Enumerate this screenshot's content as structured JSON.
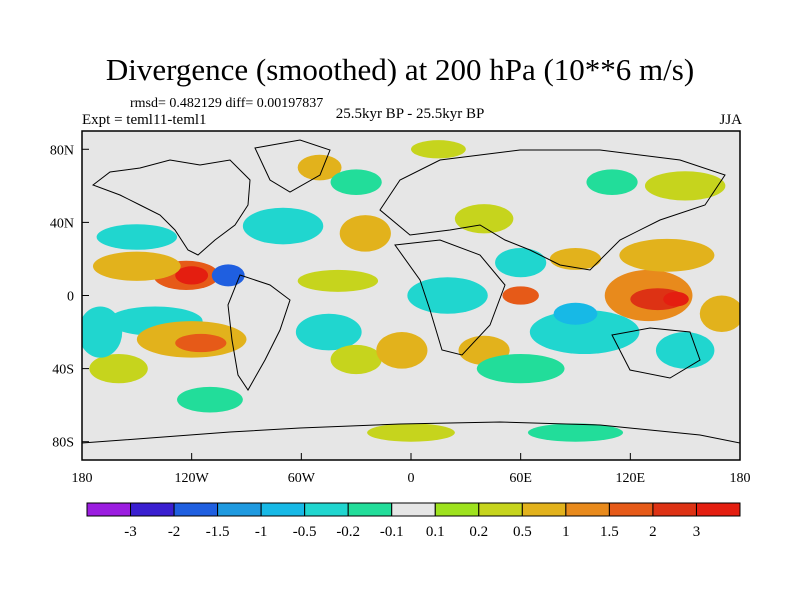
{
  "header": {
    "title": "Divergence (smoothed) at 200 hPa (10**6 m/s)",
    "stats": "rmsd= 0.482129 diff= 0.00197837",
    "experiment": "Expt = teml11-teml1",
    "period": "25.5kyr BP - 25.5kyr BP",
    "season": "JJA"
  },
  "map": {
    "projection": "cylindrical-equidistant",
    "lon_range": [
      -180,
      180
    ],
    "lat_range": [
      -90,
      90
    ],
    "background_color": "#e6e6e6",
    "x_ticks": [
      {
        "value": -180,
        "label": "180"
      },
      {
        "value": -120,
        "label": "120W"
      },
      {
        "value": -60,
        "label": "60W"
      },
      {
        "value": 0,
        "label": "0"
      },
      {
        "value": 60,
        "label": "60E"
      },
      {
        "value": 120,
        "label": "120E"
      },
      {
        "value": 180,
        "label": "180"
      }
    ],
    "y_ticks": [
      {
        "value": 80,
        "label": "80N"
      },
      {
        "value": 40,
        "label": "40N"
      },
      {
        "value": 0,
        "label": "0"
      },
      {
        "value": -40,
        "label": "40S"
      },
      {
        "value": -80,
        "label": "80S"
      }
    ],
    "features": [
      {
        "lon": -123,
        "lat": 11,
        "rlon": 18,
        "rlat": 8,
        "value": 1.5
      },
      {
        "lon": -120,
        "lat": 11,
        "rlon": 9,
        "rlat": 5,
        "value": 3
      },
      {
        "lon": -100,
        "lat": 11,
        "rlon": 9,
        "rlat": 6,
        "value": -2
      },
      {
        "lon": -150,
        "lat": 16,
        "rlon": 24,
        "rlat": 8,
        "value": 0.5
      },
      {
        "lon": -150,
        "lat": 32,
        "rlon": 22,
        "rlat": 7,
        "value": -0.5
      },
      {
        "lon": -140,
        "lat": -14,
        "rlon": 26,
        "rlat": 8,
        "value": -0.5
      },
      {
        "lon": -120,
        "lat": -24,
        "rlon": 30,
        "rlat": 10,
        "value": 0.5
      },
      {
        "lon": -115,
        "lat": -26,
        "rlon": 14,
        "rlat": 5,
        "value": 1.5
      },
      {
        "lon": -160,
        "lat": -40,
        "rlon": 16,
        "rlat": 8,
        "value": 0.2
      },
      {
        "lon": -110,
        "lat": -57,
        "rlon": 18,
        "rlat": 7,
        "value": -0.2
      },
      {
        "lon": -50,
        "lat": 70,
        "rlon": 12,
        "rlat": 7,
        "value": 0.5
      },
      {
        "lon": 15,
        "lat": 80,
        "rlon": 15,
        "rlat": 5,
        "value": 0.2
      },
      {
        "lon": -70,
        "lat": 38,
        "rlon": 22,
        "rlat": 10,
        "value": -0.5
      },
      {
        "lon": -25,
        "lat": 34,
        "rlon": 14,
        "rlat": 10,
        "value": 0.5
      },
      {
        "lon": -40,
        "lat": 8,
        "rlon": 22,
        "rlat": 6,
        "value": 0.2
      },
      {
        "lon": -45,
        "lat": -20,
        "rlon": 18,
        "rlat": 10,
        "value": -0.5
      },
      {
        "lon": -30,
        "lat": -35,
        "rlon": 14,
        "rlat": 8,
        "value": 0.2
      },
      {
        "lon": 20,
        "lat": 0,
        "rlon": 22,
        "rlat": 10,
        "value": -0.5
      },
      {
        "lon": -5,
        "lat": -30,
        "rlon": 14,
        "rlat": 10,
        "value": 0.5
      },
      {
        "lon": 40,
        "lat": -30,
        "rlon": 14,
        "rlat": 8,
        "value": 0.5
      },
      {
        "lon": 60,
        "lat": 0,
        "rlon": 10,
        "rlat": 5,
        "value": 1.5
      },
      {
        "lon": 40,
        "lat": 42,
        "rlon": 16,
        "rlat": 8,
        "value": 0.2
      },
      {
        "lon": 60,
        "lat": 18,
        "rlon": 14,
        "rlat": 8,
        "value": -0.5
      },
      {
        "lon": 90,
        "lat": 20,
        "rlon": 14,
        "rlat": 6,
        "value": 0.5
      },
      {
        "lon": 95,
        "lat": -20,
        "rlon": 30,
        "rlat": 12,
        "value": -0.5
      },
      {
        "lon": 90,
        "lat": -10,
        "rlon": 12,
        "rlat": 6,
        "value": -1
      },
      {
        "lon": 60,
        "lat": -40,
        "rlon": 24,
        "rlat": 8,
        "value": -0.2
      },
      {
        "lon": 130,
        "lat": 0,
        "rlon": 24,
        "rlat": 14,
        "value": 1
      },
      {
        "lon": 135,
        "lat": -2,
        "rlon": 15,
        "rlat": 6,
        "value": 2
      },
      {
        "lon": 145,
        "lat": -2,
        "rlon": 7,
        "rlat": 4,
        "value": 3
      },
      {
        "lon": 140,
        "lat": 22,
        "rlon": 26,
        "rlat": 9,
        "value": 0.5
      },
      {
        "lon": 150,
        "lat": -30,
        "rlon": 16,
        "rlat": 10,
        "value": -0.5
      },
      {
        "lon": 170,
        "lat": -10,
        "rlon": 12,
        "rlat": 10,
        "value": 0.5
      },
      {
        "lon": 150,
        "lat": 60,
        "rlon": 22,
        "rlat": 8,
        "value": 0.2
      },
      {
        "lon": 110,
        "lat": 62,
        "rlon": 14,
        "rlat": 7,
        "value": -0.2
      },
      {
        "lon": 0,
        "lat": -75,
        "rlon": 24,
        "rlat": 5,
        "value": 0.2
      },
      {
        "lon": 90,
        "lat": -75,
        "rlon": 26,
        "rlat": 5,
        "value": -0.2
      },
      {
        "lon": -170,
        "lat": -20,
        "rlon": 12,
        "rlat": 14,
        "value": -0.5
      },
      {
        "lon": -30,
        "lat": 62,
        "rlon": 14,
        "rlat": 7,
        "value": -0.2
      }
    ]
  },
  "legend": {
    "labels": [
      "-3",
      "-2",
      "-1.5",
      "-1",
      "-0.5",
      "-0.2",
      "-0.1",
      "0.1",
      "0.2",
      "0.5",
      "1",
      "1.5",
      "2",
      "3"
    ],
    "colors": [
      "#9b1de0",
      "#3a1fd0",
      "#1f5fe0",
      "#1f9ae0",
      "#17b9e6",
      "#20d6cf",
      "#22dd9a",
      "#e6e6e6",
      "#9ee21e",
      "#c6d41d",
      "#e2b21c",
      "#e88a1c",
      "#e65a18",
      "#dd3214",
      "#e41e10"
    ]
  }
}
